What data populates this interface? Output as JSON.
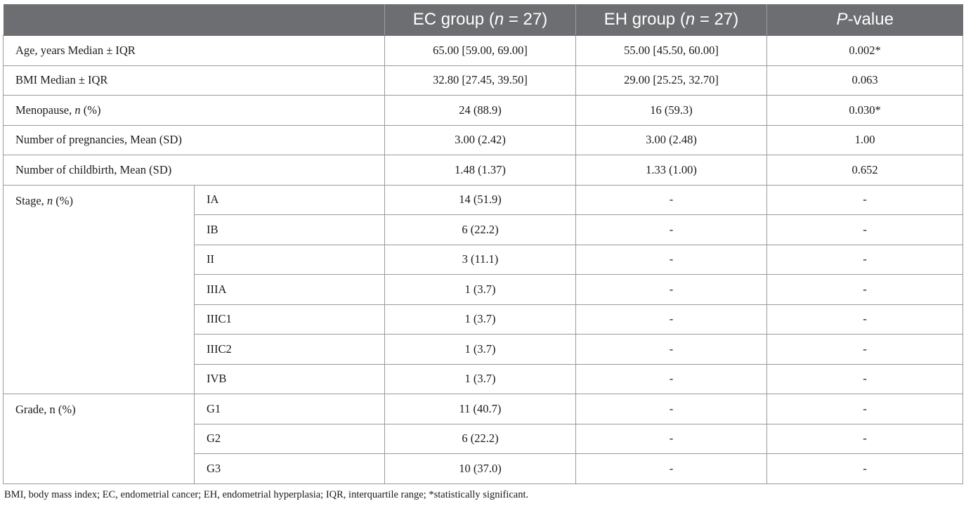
{
  "table": {
    "header": {
      "col1": "",
      "ec_prefix": "EC group (",
      "ec_n": "n",
      "ec_suffix": " = 27)",
      "eh_prefix": "EH group (",
      "eh_n": "n",
      "eh_suffix": " = 27)",
      "p_italic": "P",
      "p_suffix": "-value"
    },
    "rows": [
      {
        "label": "Age, years Median ± IQR",
        "ec": "65.00 [59.00, 69.00]",
        "eh": "55.00 [45.50, 60.00]",
        "p": "0.002*"
      },
      {
        "label": "BMI Median ± IQR",
        "ec": "32.80 [27.45, 39.50]",
        "eh": "29.00 [25.25, 32.70]",
        "p": "0.063"
      },
      {
        "label_prefix": "Menopause, ",
        "label_italic": "n",
        "label_suffix": " (%)",
        "ec": "24 (88.9)",
        "eh": "16 (59.3)",
        "p": "0.030*"
      },
      {
        "label": "Number of pregnancies, Mean (SD)",
        "ec": "3.00 (2.42)",
        "eh": "3.00 (2.48)",
        "p": "1.00"
      },
      {
        "label": "Number of childbirth, Mean (SD)",
        "ec": "1.48 (1.37)",
        "eh": "1.33 (1.00)",
        "p": "0.652"
      }
    ],
    "stage": {
      "label_prefix": "Stage, ",
      "label_italic": "n",
      "label_suffix": " (%)",
      "rows": [
        {
          "sub": "IA",
          "ec": "14 (51.9)",
          "eh": "-",
          "p": "-"
        },
        {
          "sub": "IB",
          "ec": "6 (22.2)",
          "eh": "-",
          "p": "-"
        },
        {
          "sub": "II",
          "ec": "3 (11.1)",
          "eh": "-",
          "p": "-"
        },
        {
          "sub": "IIIA",
          "ec": "1 (3.7)",
          "eh": "-",
          "p": "-"
        },
        {
          "sub": "IIIC1",
          "ec": "1 (3.7)",
          "eh": "-",
          "p": "-"
        },
        {
          "sub": "IIIC2",
          "ec": "1 (3.7)",
          "eh": "-",
          "p": "-"
        },
        {
          "sub": "IVB",
          "ec": "1 (3.7)",
          "eh": "-",
          "p": "-"
        }
      ]
    },
    "grade": {
      "label": "Grade, n (%)",
      "rows": [
        {
          "sub": "G1",
          "ec": "11 (40.7)",
          "eh": "-",
          "p": "-"
        },
        {
          "sub": "G2",
          "ec": "6 (22.2)",
          "eh": "-",
          "p": "-"
        },
        {
          "sub": "G3",
          "ec": "10 (37.0)",
          "eh": "-",
          "p": "-"
        }
      ]
    }
  },
  "footnote": "BMI, body mass index; EC, endometrial cancer; EH, endometrial hyperplasia; IQR, interquartile range; *statistically significant."
}
